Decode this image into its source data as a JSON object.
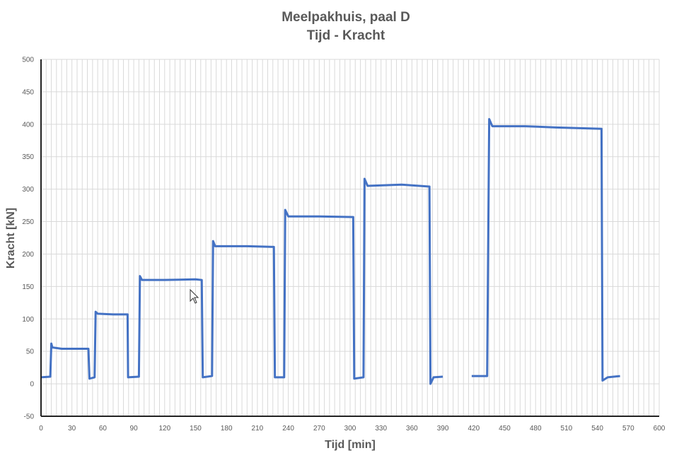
{
  "chart_data": {
    "type": "line",
    "title": "Meelpakhuis, paal D",
    "subtitle": "Tijd - Kracht",
    "xlabel": "Tijd [min]",
    "ylabel": "Kracht [kN]",
    "xlim": [
      0,
      600
    ],
    "ylim": [
      -50,
      500
    ],
    "xticks": [
      0,
      30,
      60,
      90,
      120,
      150,
      180,
      210,
      240,
      270,
      300,
      330,
      360,
      390,
      420,
      450,
      480,
      510,
      540,
      570,
      600
    ],
    "yticks": [
      -50,
      0,
      50,
      100,
      150,
      200,
      250,
      300,
      350,
      400,
      450,
      500
    ],
    "grid": true,
    "line_color": "#4472C4",
    "series": [
      {
        "name": "Kracht",
        "segments": [
          [
            [
              0,
              10
            ],
            [
              9,
              11
            ],
            [
              10,
              62
            ],
            [
              11,
              56
            ],
            [
              20,
              54
            ],
            [
              35,
              54
            ],
            [
              46,
              54
            ],
            [
              47,
              8
            ],
            [
              52,
              10
            ],
            [
              53,
              111
            ],
            [
              55,
              108
            ],
            [
              70,
              107
            ],
            [
              84,
              107
            ],
            [
              84.5,
              10
            ],
            [
              95,
              11
            ],
            [
              96,
              166
            ],
            [
              98,
              160
            ],
            [
              120,
              160
            ],
            [
              150,
              161
            ],
            [
              156,
              160
            ],
            [
              157,
              10
            ],
            [
              166,
              12
            ],
            [
              167,
              220
            ],
            [
              169,
              212
            ],
            [
              200,
              212
            ],
            [
              226,
              211
            ],
            [
              227,
              10
            ],
            [
              236,
              10
            ],
            [
              237,
              268
            ],
            [
              240,
              258
            ],
            [
              270,
              258
            ],
            [
              303,
              257
            ],
            [
              304,
              8
            ],
            [
              313,
              10
            ],
            [
              314,
              316
            ],
            [
              317,
              305
            ],
            [
              350,
              307
            ],
            [
              377,
              304
            ],
            [
              378,
              0
            ],
            [
              381,
              10
            ],
            [
              390,
              11
            ]
          ],
          [
            [
              418,
              12
            ],
            [
              433,
              12
            ],
            [
              435,
              408
            ],
            [
              438,
              397
            ],
            [
              470,
              397
            ],
            [
              500,
              395
            ],
            [
              544,
              393
            ],
            [
              545,
              5
            ],
            [
              550,
              10
            ],
            [
              562,
              12
            ]
          ]
        ]
      }
    ]
  }
}
